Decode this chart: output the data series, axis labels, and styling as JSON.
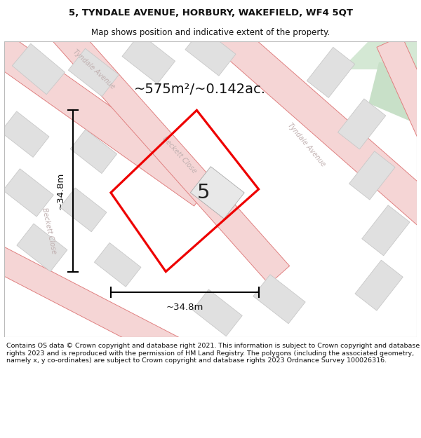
{
  "title_line1": "5, TYNDALE AVENUE, HORBURY, WAKEFIELD, WF4 5QT",
  "title_line2": "Map shows position and indicative extent of the property.",
  "area_text": "~575m²/~0.142ac.",
  "property_number": "5",
  "dim_horizontal": "~34.8m",
  "dim_vertical": "~34.8m",
  "footer_text": "Contains OS data © Crown copyright and database right 2021. This information is subject to Crown copyright and database rights 2023 and is reproduced with the permission of HM Land Registry. The polygons (including the associated geometry, namely x, y co-ordinates) are subject to Crown copyright and database rights 2023 Ordnance Survey 100026316.",
  "map_bg": "#f2f2f2",
  "road_fill": "#f5d5d5",
  "road_edge": "#e08080",
  "building_fill": "#e0e0e0",
  "building_edge": "#c8c8c8",
  "property_edge": "#ee0000",
  "green_fill": "#d4e8d4",
  "street_color": "#c0b0b0",
  "dim_color": "#111111",
  "title_color": "#111111",
  "footer_color": "#111111"
}
